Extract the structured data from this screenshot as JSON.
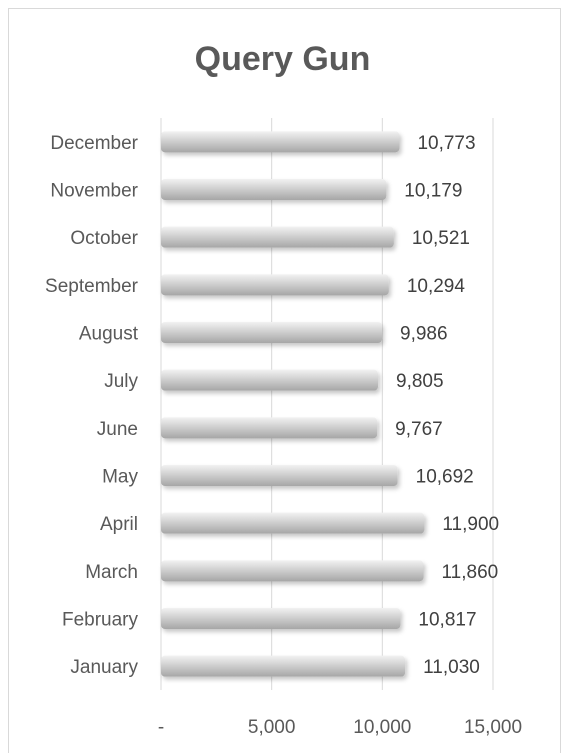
{
  "chart_data": {
    "type": "bar",
    "orientation": "horizontal",
    "title": "Query Gun",
    "categories": [
      "January",
      "February",
      "March",
      "April",
      "May",
      "June",
      "July",
      "August",
      "September",
      "October",
      "November",
      "December"
    ],
    "values": [
      11030,
      10817,
      11860,
      11900,
      10692,
      9767,
      9805,
      9986,
      10294,
      10521,
      10179,
      10773
    ],
    "value_labels": [
      "11,030",
      "10,817",
      "11,860",
      "11,900",
      "10,692",
      "9,767",
      "9,805",
      "9,986",
      "10,294",
      "10,521",
      "10,179",
      "10,773"
    ],
    "xlim": [
      0,
      15000
    ],
    "x_ticks": [
      0,
      5000,
      10000,
      15000
    ],
    "x_tick_labels": [
      "-",
      "5,000",
      "10,000",
      "15,000"
    ],
    "grid": true,
    "legend": "none",
    "bar_color": "#c8c8c8",
    "gridline_color": "#d9d9d9",
    "text_color": "#595959"
  }
}
